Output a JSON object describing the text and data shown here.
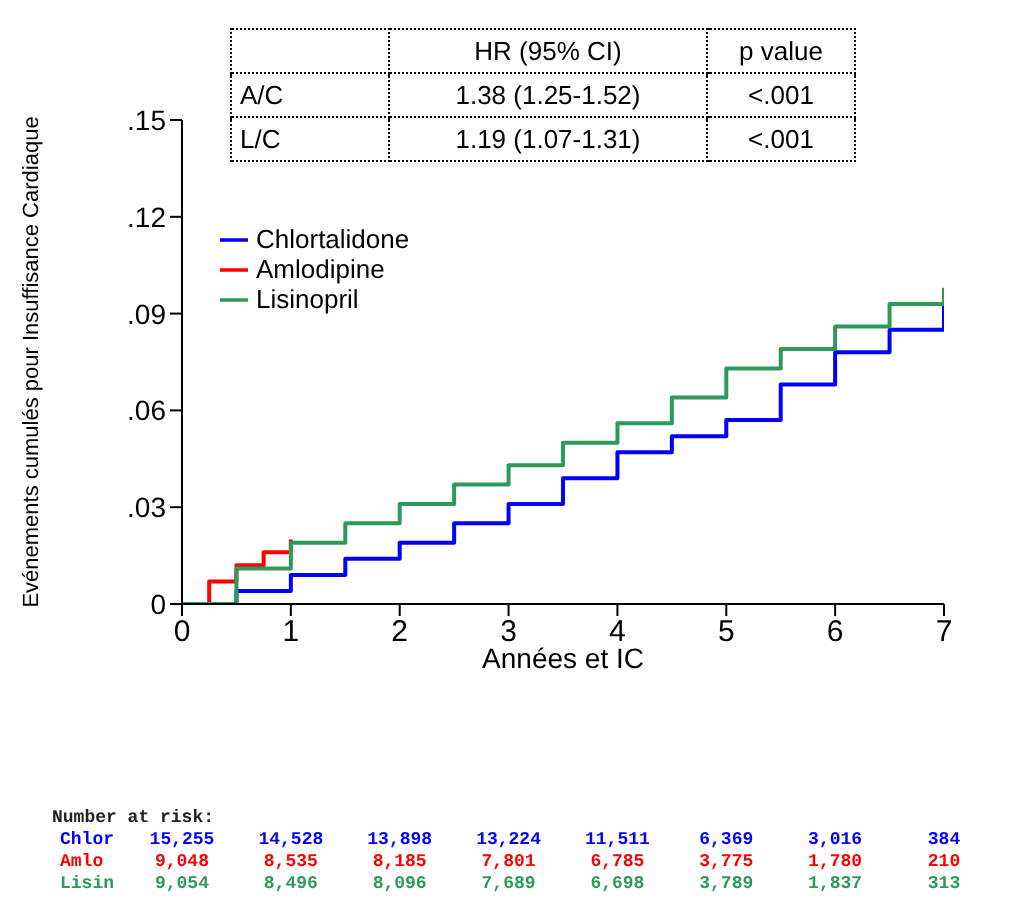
{
  "chart_data": {
    "type": "step",
    "xlabel": "Années et IC",
    "ylabel": "Evénements cumulés pour Insuffisance Cardiaque",
    "xlim": [
      0,
      7
    ],
    "xticks": [
      0,
      1,
      2,
      3,
      4,
      5,
      6,
      7
    ],
    "ylim": [
      0,
      0.15
    ],
    "yticks": [
      0,
      {
        "value": 0.03,
        "label": ".03"
      },
      {
        "value": 0.06,
        "label": ".06"
      },
      {
        "value": 0.09,
        "label": ".09"
      },
      {
        "value": 0.12,
        "label": ".12"
      },
      {
        "value": 0.15,
        "label": ".15"
      }
    ],
    "grid": false,
    "legend": "top left",
    "marker": "none",
    "series": [
      {
        "name": "Chlortalidone",
        "color": "#0000ff",
        "x": [
          0,
          0.5,
          1,
          1.5,
          2,
          2.5,
          3,
          3.5,
          4,
          4.5,
          5,
          5.5,
          6,
          6.5,
          7
        ],
        "values": [
          0,
          0.004,
          0.009,
          0.014,
          0.019,
          0.025,
          0.031,
          0.039,
          0.047,
          0.052,
          0.057,
          0.068,
          0.078,
          0.085,
          0.094
        ]
      },
      {
        "name": "Amlodipine",
        "color": "#ff0000",
        "x": [
          0,
          0.25,
          0.5,
          0.75,
          1
        ],
        "values": [
          0,
          0.007,
          0.012,
          0.016,
          0.02
        ]
      },
      {
        "name": "Lisinopril",
        "color": "#2e9a5a",
        "x": [
          0,
          0.5,
          1,
          1.5,
          2,
          2.5,
          3,
          3.5,
          4,
          4.5,
          5,
          5.5,
          6,
          6.5,
          7
        ],
        "values": [
          0,
          0.011,
          0.019,
          0.025,
          0.031,
          0.037,
          0.043,
          0.05,
          0.056,
          0.064,
          0.073,
          0.079,
          0.086,
          0.093,
          0.098
        ]
      }
    ],
    "annotations": [
      "HR (95% CI)",
      "p value",
      "A/C",
      "1.38 (1.25-1.52)",
      "<.001",
      "L/C",
      "1.19 (1.07-1.31)",
      "<.001",
      "Number at risk:",
      "Chlor",
      "15,255",
      "14,528",
      "13,898",
      "13,224",
      "11,511",
      "6,369",
      "3,016",
      "384",
      "Amlo",
      "9,048",
      "8,535",
      "8,185",
      "7,801",
      "6,785",
      "3,775",
      "1,780",
      "210",
      "Lisin",
      "9,054",
      "8,496",
      "8,096",
      "7,689",
      "6,698",
      "3,789",
      "1,837",
      "313"
    ]
  }
}
